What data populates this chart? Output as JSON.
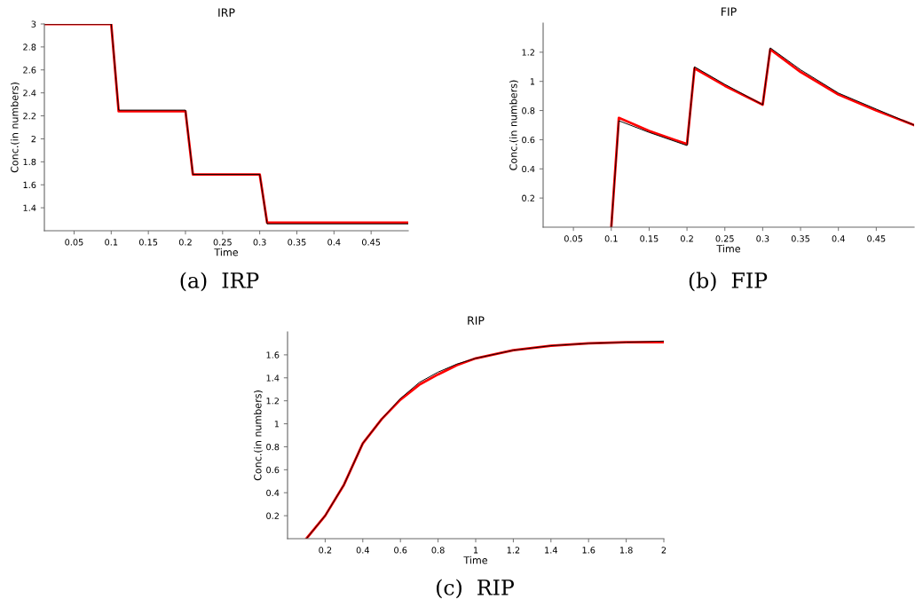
{
  "chart_data": [
    {
      "type": "line",
      "title": "IRP",
      "xlabel": "Time",
      "ylabel": "Conc.(in numbers)",
      "annotations": [
        "(a)  IRP"
      ],
      "xlim": [
        0.01,
        0.5
      ],
      "ylim": [
        1.2,
        3
      ],
      "xticks": [
        0.05,
        0.1,
        0.15,
        0.2,
        0.25,
        0.3,
        0.35,
        0.4,
        0.45
      ],
      "yticks": [
        1.4,
        1.6,
        1.8,
        2,
        2.2,
        2.4,
        2.6,
        2.8,
        3
      ],
      "series": [
        {
          "color": "#ff0000",
          "x": [
            0.01,
            0.1,
            0.11,
            0.2,
            0.21,
            0.3,
            0.31,
            0.5
          ],
          "values": [
            3,
            3,
            2.24,
            2.24,
            1.69,
            1.69,
            1.27,
            1.27
          ]
        },
        {
          "color": "#000000",
          "x": [
            0.01,
            0.1,
            0.11,
            0.2,
            0.21,
            0.3,
            0.31,
            0.5
          ],
          "values": [
            3,
            3,
            2.25,
            2.25,
            1.69,
            1.69,
            1.26,
            1.26
          ]
        }
      ]
    },
    {
      "type": "line",
      "title": "FIP",
      "xlabel": "Time",
      "ylabel": "Conc.(in numbers)",
      "annotations": [
        "(b)  FIP"
      ],
      "xlim": [
        0.01,
        0.5
      ],
      "ylim": [
        0,
        1.4
      ],
      "xticks": [
        0.05,
        0.1,
        0.15,
        0.2,
        0.25,
        0.3,
        0.35,
        0.4,
        0.45
      ],
      "yticks": [
        0.2,
        0.4,
        0.6,
        0.8,
        1,
        1.2
      ],
      "series": [
        {
          "color": "#ff0000",
          "x": [
            0.1,
            0.11,
            0.15,
            0.2,
            0.21,
            0.25,
            0.3,
            0.31,
            0.35,
            0.4,
            0.45,
            0.5
          ],
          "values": [
            0,
            0.75,
            0.66,
            0.57,
            1.09,
            0.97,
            0.84,
            1.22,
            1.065,
            0.91,
            0.8,
            0.7
          ]
        },
        {
          "color": "#000000",
          "x": [
            0.1,
            0.11,
            0.15,
            0.2,
            0.21,
            0.25,
            0.3,
            0.31,
            0.35,
            0.4,
            0.45,
            0.5
          ],
          "values": [
            0,
            0.73,
            0.65,
            0.56,
            1.1,
            0.98,
            0.84,
            1.23,
            1.08,
            0.92,
            0.81,
            0.7
          ]
        }
      ]
    },
    {
      "type": "line",
      "title": "RIP",
      "xlabel": "Time",
      "ylabel": "Conc.(in numbers)",
      "annotations": [
        "(c)  RIP"
      ],
      "xlim": [
        0,
        2
      ],
      "ylim": [
        0,
        1.8
      ],
      "xticks": [
        0.2,
        0.4,
        0.6,
        0.8,
        1,
        1.2,
        1.4,
        1.6,
        1.8,
        2
      ],
      "yticks": [
        0.2,
        0.4,
        0.6,
        0.8,
        1,
        1.2,
        1.4,
        1.6
      ],
      "series": [
        {
          "color": "#ff0000",
          "x": [
            0.1,
            0.2,
            0.3,
            0.4,
            0.5,
            0.6,
            0.7,
            0.8,
            0.9,
            1.0,
            1.2,
            1.4,
            1.6,
            1.8,
            2.0
          ],
          "values": [
            0,
            0.2,
            0.47,
            0.83,
            1.04,
            1.21,
            1.34,
            1.43,
            1.51,
            1.57,
            1.64,
            1.68,
            1.7,
            1.71,
            1.71
          ]
        },
        {
          "color": "#000000",
          "x": [
            0.1,
            0.2,
            0.3,
            0.4,
            0.5,
            0.6,
            0.7,
            0.8,
            0.9,
            1.0,
            1.2,
            1.4,
            1.6,
            1.8,
            2.0
          ],
          "values": [
            0,
            0.2,
            0.47,
            0.83,
            1.04,
            1.22,
            1.36,
            1.45,
            1.52,
            1.57,
            1.64,
            1.68,
            1.7,
            1.71,
            1.72
          ]
        }
      ]
    }
  ]
}
